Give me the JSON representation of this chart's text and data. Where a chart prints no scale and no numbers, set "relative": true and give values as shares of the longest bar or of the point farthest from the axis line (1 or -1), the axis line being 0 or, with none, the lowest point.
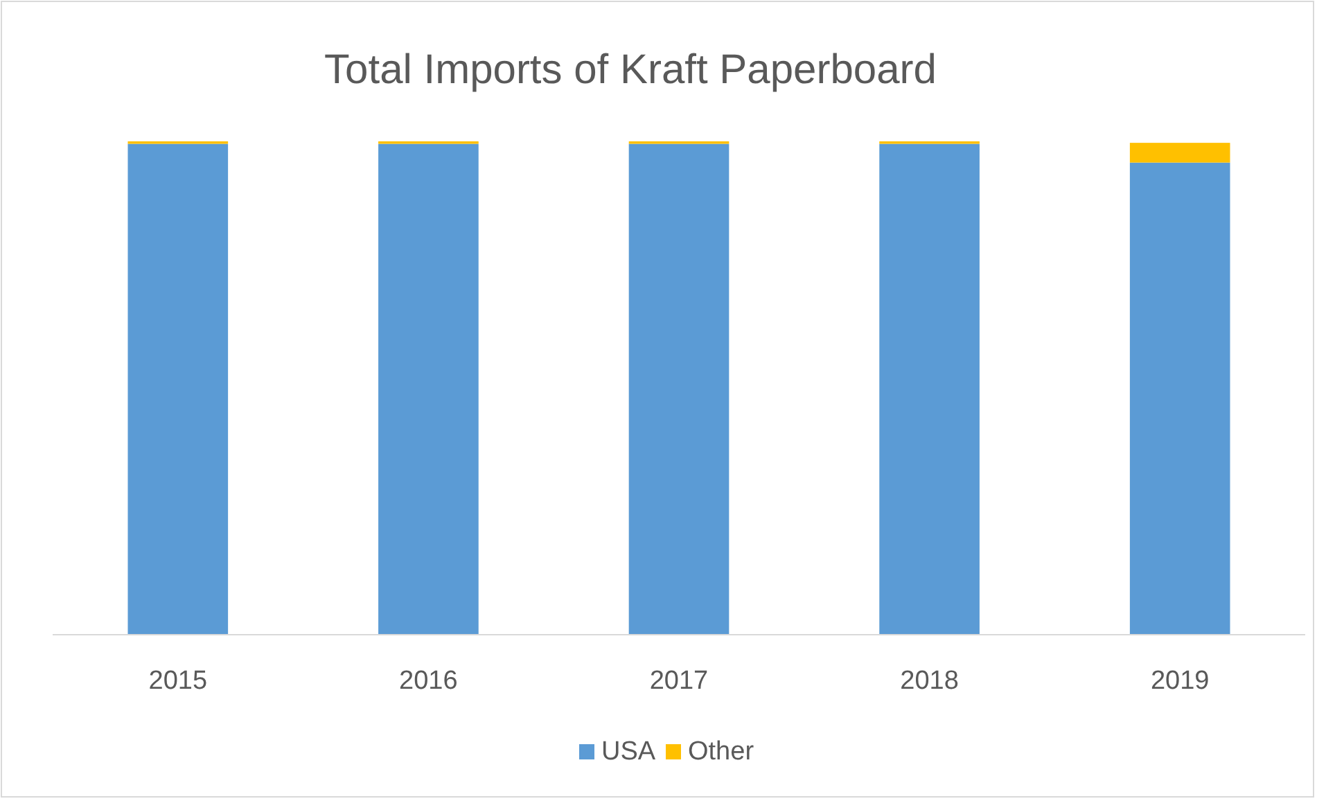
{
  "chart_data": {
    "type": "bar",
    "title": "Total Imports of Kraft Paperboard",
    "relative": true,
    "stacked": true,
    "legend": "bottom",
    "grid": false,
    "categories": [
      "2015",
      "2016",
      "2017",
      "2018",
      "2019"
    ],
    "series": [
      {
        "name": "USA",
        "color": "#5b9bd5",
        "values": [
          0.995,
          0.995,
          0.995,
          0.995,
          0.957
        ]
      },
      {
        "name": "Other",
        "color": "#ffc000",
        "values": [
          0.005,
          0.005,
          0.005,
          0.005,
          0.04
        ]
      }
    ]
  }
}
